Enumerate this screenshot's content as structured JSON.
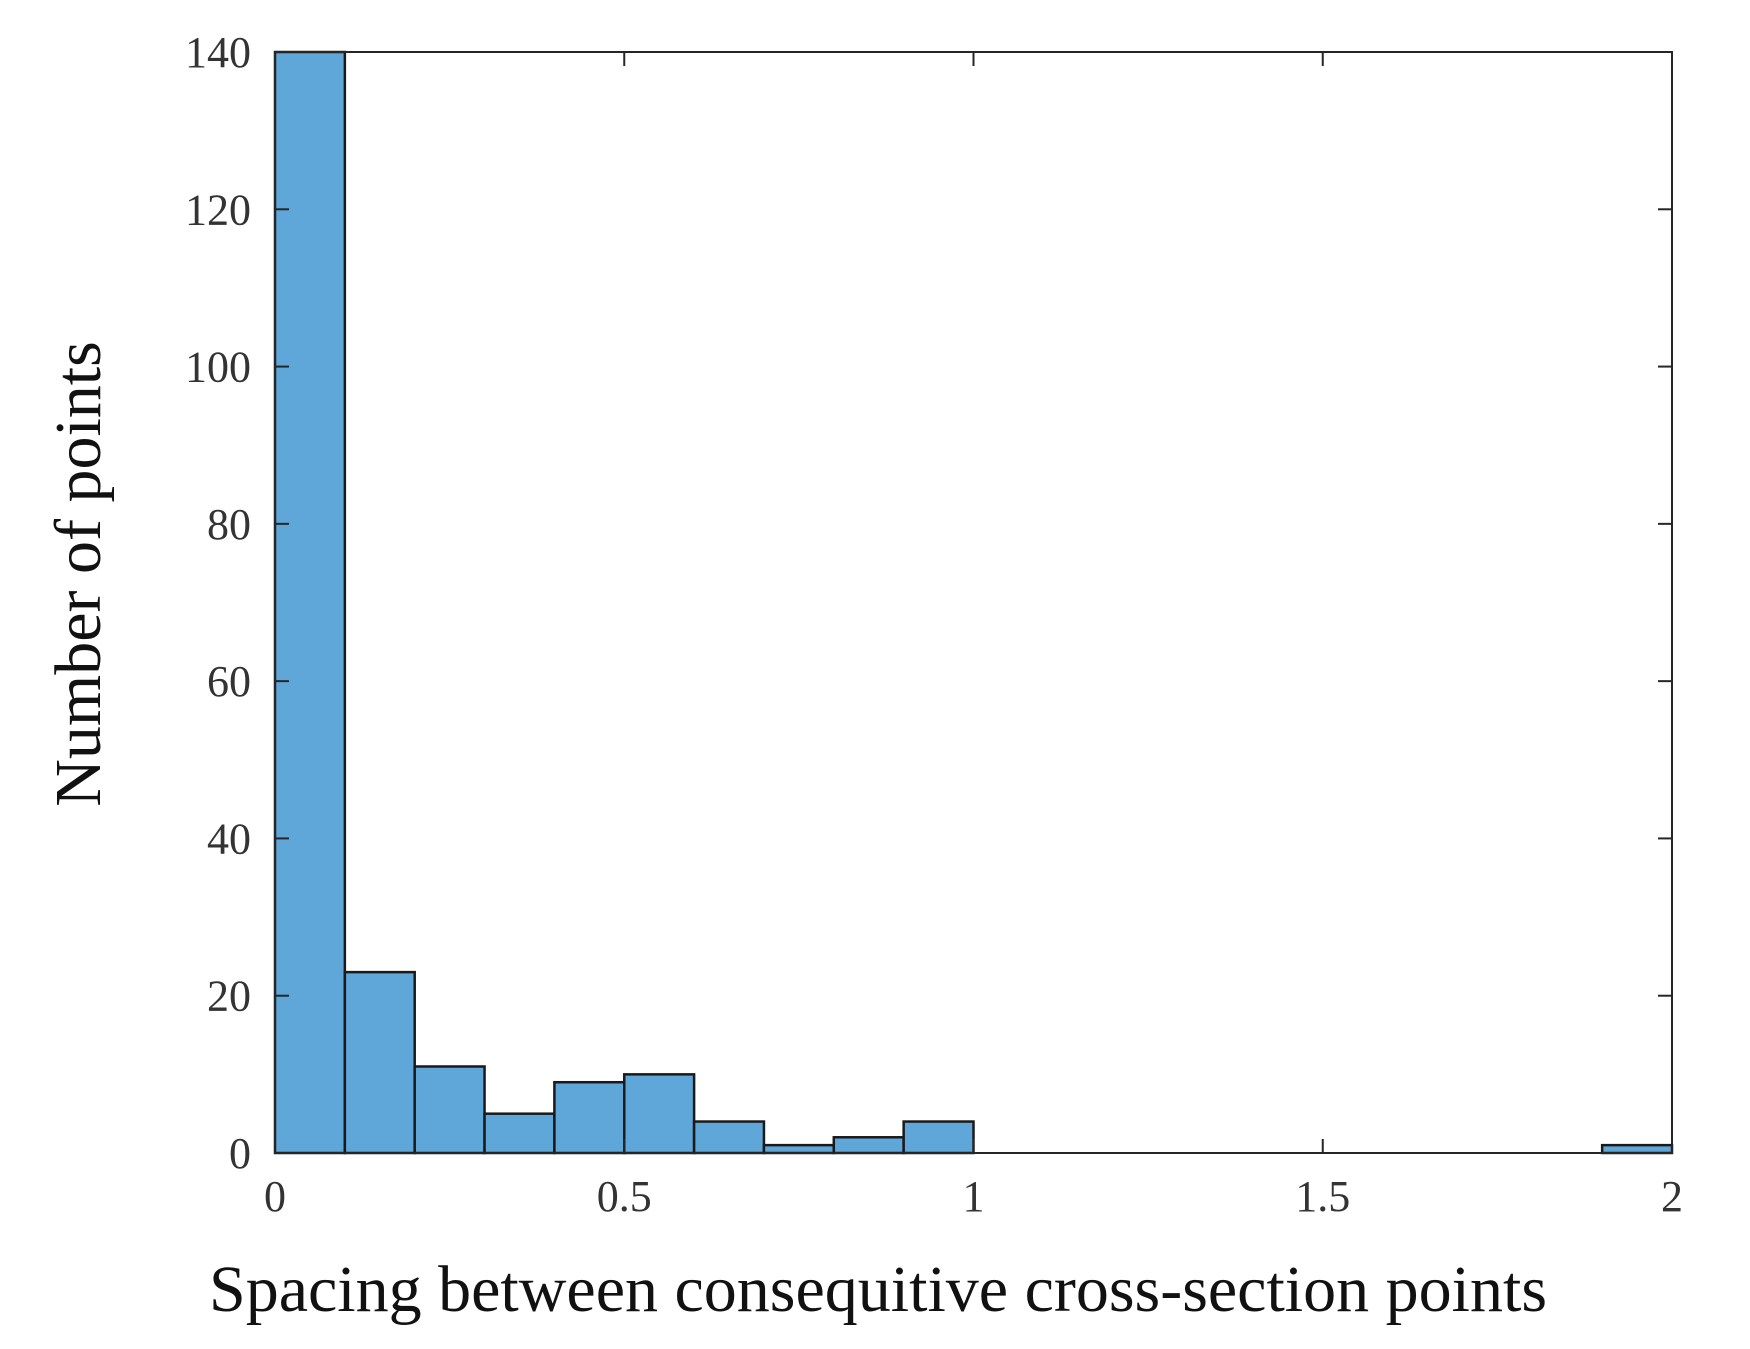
{
  "chart_data": {
    "type": "bar",
    "title": "",
    "xlabel": "Spacing between consequitive cross-section points",
    "ylabel": "Number of points",
    "xlim": [
      0,
      2
    ],
    "ylim": [
      0,
      140
    ],
    "xticks": [
      0,
      0.5,
      1,
      1.5,
      2
    ],
    "xtick_labels": [
      "0",
      "0.5",
      "1",
      "1.5",
      "2"
    ],
    "yticks": [
      0,
      20,
      40,
      60,
      80,
      100,
      120,
      140
    ],
    "ytick_labels": [
      "0",
      "20",
      "40",
      "60",
      "80",
      "100",
      "120",
      "140"
    ],
    "grid": false,
    "bar_color": "#5fa7d9",
    "edge_color": "#1a1a1a",
    "bins": [
      {
        "start": 0.0,
        "end": 0.1,
        "count": 140
      },
      {
        "start": 0.1,
        "end": 0.2,
        "count": 23
      },
      {
        "start": 0.2,
        "end": 0.3,
        "count": 11
      },
      {
        "start": 0.3,
        "end": 0.4,
        "count": 5
      },
      {
        "start": 0.4,
        "end": 0.5,
        "count": 9
      },
      {
        "start": 0.5,
        "end": 0.6,
        "count": 10
      },
      {
        "start": 0.6,
        "end": 0.7,
        "count": 4
      },
      {
        "start": 0.7,
        "end": 0.8,
        "count": 1
      },
      {
        "start": 0.8,
        "end": 0.9,
        "count": 2
      },
      {
        "start": 0.9,
        "end": 1.0,
        "count": 4
      },
      {
        "start": 1.0,
        "end": 1.1,
        "count": 0
      },
      {
        "start": 1.1,
        "end": 1.2,
        "count": 0
      },
      {
        "start": 1.2,
        "end": 1.3,
        "count": 0
      },
      {
        "start": 1.3,
        "end": 1.4,
        "count": 0
      },
      {
        "start": 1.4,
        "end": 1.5,
        "count": 0
      },
      {
        "start": 1.5,
        "end": 1.6,
        "count": 0
      },
      {
        "start": 1.6,
        "end": 1.7,
        "count": 0
      },
      {
        "start": 1.7,
        "end": 1.8,
        "count": 0
      },
      {
        "start": 1.8,
        "end": 1.9,
        "count": 0
      },
      {
        "start": 1.9,
        "end": 2.0,
        "count": 1
      }
    ]
  }
}
